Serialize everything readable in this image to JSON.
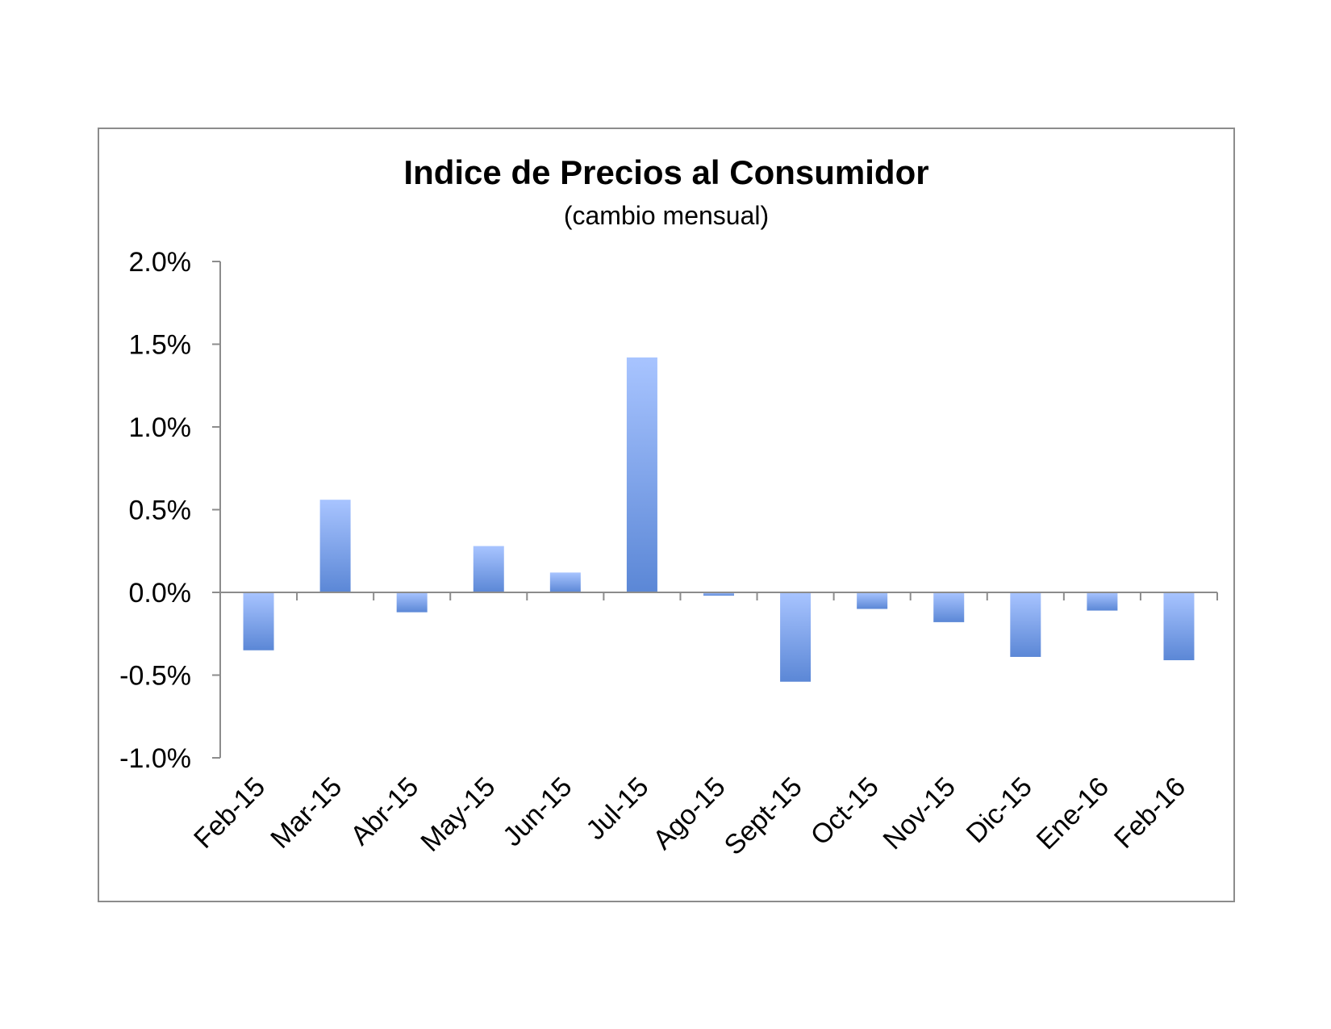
{
  "chart_data": {
    "type": "bar",
    "title": "Indice de Precios al Consumidor",
    "subtitle": "(cambio mensual)",
    "categories": [
      "Feb-15",
      "Mar-15",
      "Abr-15",
      "May-15",
      "Jun-15",
      "Jul-15",
      "Ago-15",
      "Sept-15",
      "Oct-15",
      "Nov-15",
      "Dic-15",
      "Ene-16",
      "Feb-16"
    ],
    "series": [
      {
        "values": [
          -0.35,
          0.56,
          -0.12,
          0.28,
          0.12,
          1.42,
          -0.02,
          -0.54,
          -0.1,
          -0.18,
          -0.39,
          -0.11,
          -0.41
        ]
      }
    ],
    "ylim": [
      -1.0,
      2.0
    ],
    "yticks": [
      2.0,
      1.5,
      1.0,
      0.5,
      0.0,
      -0.5,
      -1.0
    ],
    "ytick_labels": [
      "2.0%",
      "1.5%",
      "1.0%",
      "0.5%",
      "0.0%",
      "-0.5%",
      "-1.0%"
    ],
    "grid": false,
    "legend": "none",
    "bar_color_light": "#a8c4ff",
    "bar_color_dark": "#5b87d6"
  }
}
